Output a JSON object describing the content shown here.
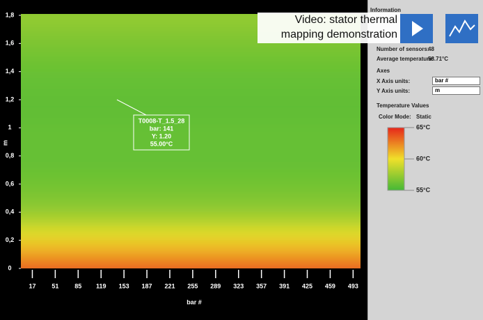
{
  "chart_data": {
    "type": "heatmap-profile",
    "x_label": "bar #",
    "y_label": "m",
    "xlim": [
      0,
      504
    ],
    "ylim": [
      0,
      1.81
    ],
    "xticks": [
      17,
      51,
      85,
      119,
      153,
      187,
      221,
      255,
      289,
      323,
      357,
      391,
      425,
      459,
      493
    ],
    "yticks": [
      0,
      {
        "value": 0.2,
        "label": "0,2"
      },
      {
        "value": 0.4,
        "label": "0,4"
      },
      {
        "value": 0.6,
        "label": "0,6"
      },
      {
        "value": 0.8,
        "label": "0,8"
      },
      1,
      {
        "value": 1.2,
        "label": "1,2"
      },
      {
        "value": 1.4,
        "label": "1,4"
      },
      {
        "value": 1.6,
        "label": "1,6"
      },
      {
        "value": 1.8,
        "label": "1,8"
      }
    ],
    "y": [
      0,
      0.1,
      0.2,
      0.3,
      0.4,
      0.5,
      0.6,
      0.7,
      0.8,
      0.9,
      1,
      1.1,
      1.2,
      1.3,
      1.4,
      1.5,
      1.6,
      1.7,
      1.8
    ],
    "values": [
      64,
      62.5,
      61,
      59.5,
      58,
      57,
      56.5,
      56.2,
      56,
      56,
      56,
      55.9,
      55.8,
      55.9,
      56,
      56.2,
      56.5,
      56.8,
      57.2
    ],
    "colorbar": {
      "ticks": [
        {
          "value": 65,
          "label": "65°C"
        },
        {
          "value": 60,
          "label": "60°C"
        },
        {
          "value": 55,
          "label": "55°C"
        }
      ],
      "colors": [
        "#44b836",
        "#f0e02a",
        "#e6261a"
      ]
    },
    "tooltip": {
      "lines": [
        "T0008-T_1.5_28",
        "bar: 141",
        "Y: 1.20",
        "55.00°C"
      ]
    }
  },
  "panel": {
    "title": "Information",
    "fields": [
      {
        "label": "Number of sensors:",
        "value": "48"
      },
      {
        "label": "Average temperature:",
        "value": "58.71°C"
      }
    ],
    "axes": {
      "title": "Axes",
      "x_label": "X Axis units:",
      "x_value": "bar #",
      "y_label": "Y Axis units:",
      "y_value": "m"
    },
    "temperature": {
      "title": "Temperature Values",
      "mode_label": "Color Mode:",
      "mode_value": "Static"
    }
  },
  "video": {
    "lines": [
      "Video: stator thermal",
      "mapping demonstration"
    ]
  }
}
